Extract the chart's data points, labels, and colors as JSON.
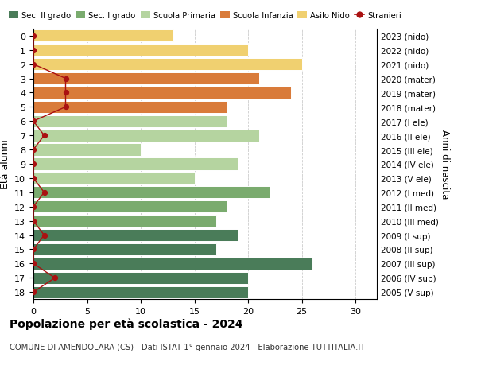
{
  "ages": [
    18,
    17,
    16,
    15,
    14,
    13,
    12,
    11,
    10,
    9,
    8,
    7,
    6,
    5,
    4,
    3,
    2,
    1,
    0
  ],
  "right_labels": [
    "2005 (V sup)",
    "2006 (IV sup)",
    "2007 (III sup)",
    "2008 (II sup)",
    "2009 (I sup)",
    "2010 (III med)",
    "2011 (II med)",
    "2012 (I med)",
    "2013 (V ele)",
    "2014 (IV ele)",
    "2015 (III ele)",
    "2016 (II ele)",
    "2017 (I ele)",
    "2018 (mater)",
    "2019 (mater)",
    "2020 (mater)",
    "2021 (nido)",
    "2022 (nido)",
    "2023 (nido)"
  ],
  "bar_values": [
    20,
    20,
    26,
    17,
    19,
    17,
    18,
    22,
    15,
    19,
    10,
    21,
    18,
    18,
    24,
    21,
    25,
    20,
    13
  ],
  "stranieri_values": [
    0,
    2,
    0,
    0,
    1,
    0,
    0,
    1,
    0,
    0,
    0,
    1,
    0,
    3,
    3,
    3,
    0,
    0,
    0
  ],
  "bar_colors": [
    "#4a7c59",
    "#4a7c59",
    "#4a7c59",
    "#4a7c59",
    "#4a7c59",
    "#7aab6e",
    "#7aab6e",
    "#7aab6e",
    "#b5d4a0",
    "#b5d4a0",
    "#b5d4a0",
    "#b5d4a0",
    "#b5d4a0",
    "#d97b3a",
    "#d97b3a",
    "#d97b3a",
    "#f0d070",
    "#f0d070",
    "#f0d070"
  ],
  "legend_labels": [
    "Sec. II grado",
    "Sec. I grado",
    "Scuola Primaria",
    "Scuola Infanzia",
    "Asilo Nido",
    "Stranieri"
  ],
  "legend_colors": [
    "#4a7c59",
    "#7aab6e",
    "#b5d4a0",
    "#d97b3a",
    "#f0d070",
    "#aa1111"
  ],
  "ylabel": "Età alunni",
  "right_ylabel": "Anni di nascita",
  "title": "Popolazione per età scolastica - 2024",
  "subtitle": "COMUNE DI AMENDOLARA (CS) - Dati ISTAT 1° gennaio 2024 - Elaborazione TUTTITALIA.IT",
  "xlim": [
    0,
    32
  ],
  "background_color": "#ffffff",
  "grid_color": "#cccccc"
}
